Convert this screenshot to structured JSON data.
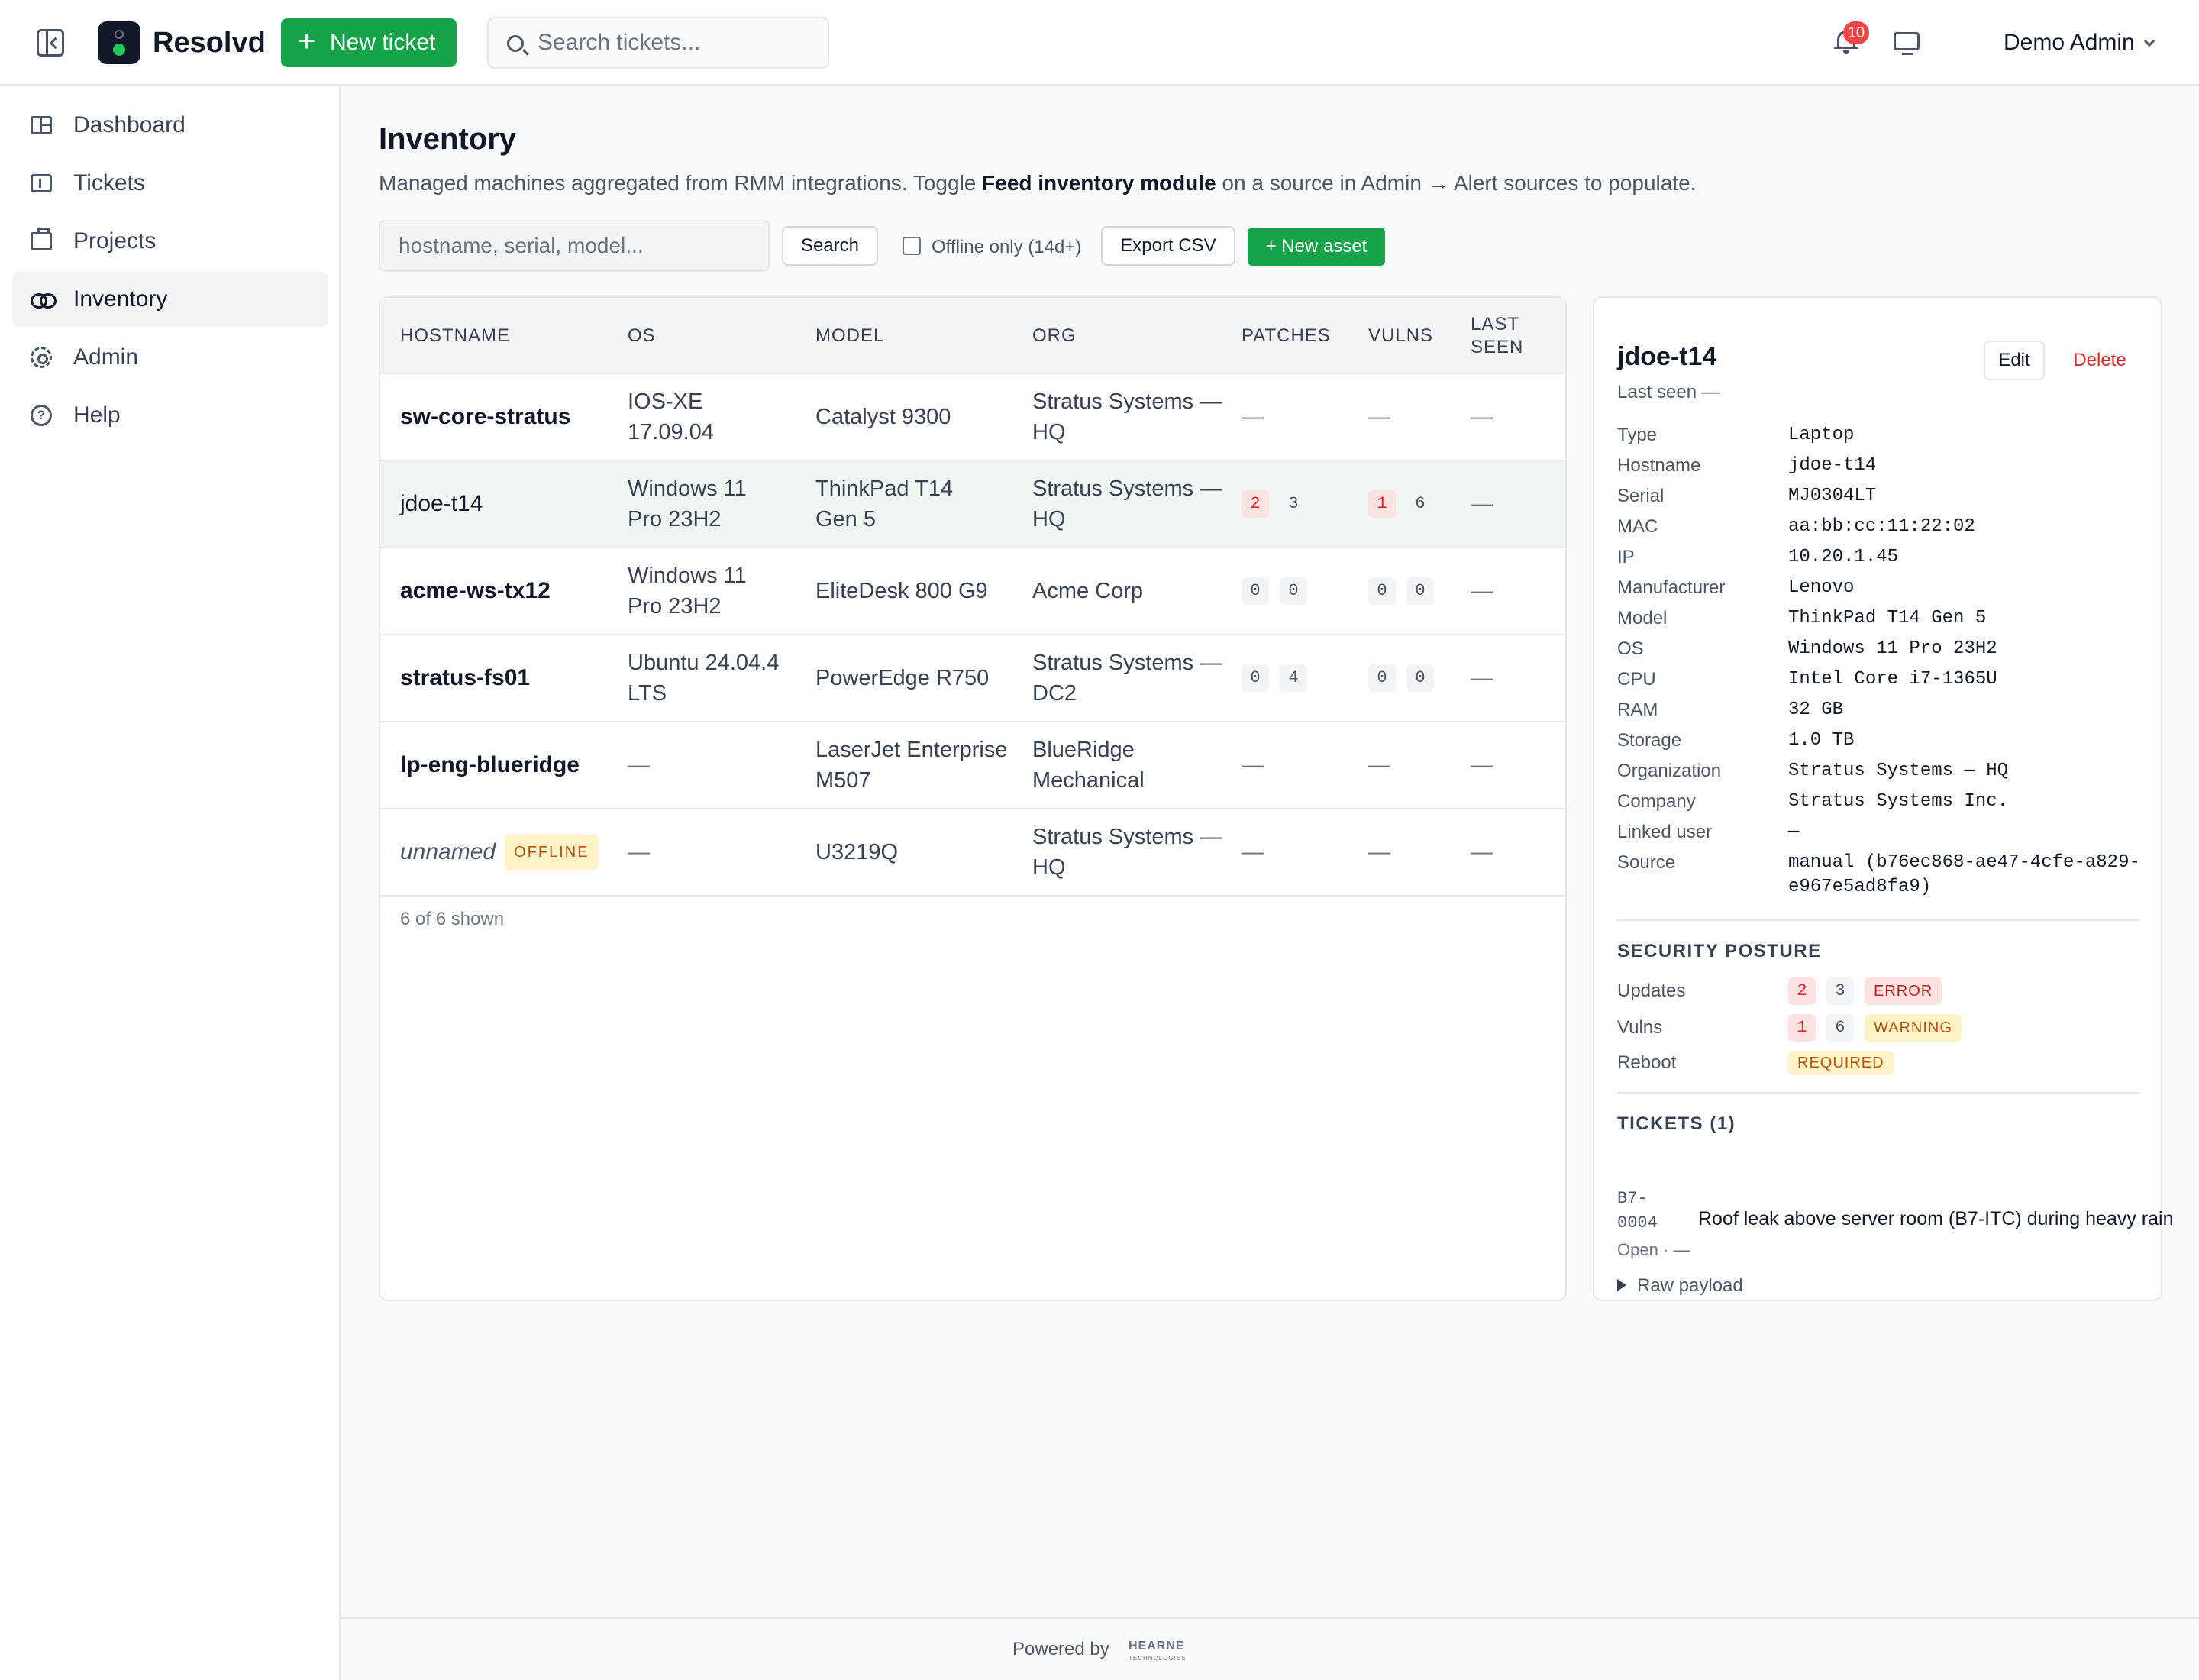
{
  "topbar": {
    "brand": "Resolvd",
    "new_ticket_label": "New ticket",
    "search_placeholder": "Search tickets...",
    "notification_count": "10",
    "user_name": "Demo Admin"
  },
  "sidebar": {
    "items": [
      {
        "label": "Dashboard",
        "icon": "dashboard-icon"
      },
      {
        "label": "Tickets",
        "icon": "ticket-icon"
      },
      {
        "label": "Projects",
        "icon": "projects-icon"
      },
      {
        "label": "Inventory",
        "icon": "inventory-icon",
        "active": true
      },
      {
        "label": "Admin",
        "icon": "gear-icon"
      },
      {
        "label": "Help",
        "icon": "help-icon"
      }
    ]
  },
  "page": {
    "title": "Inventory",
    "subtitle_pre": "Managed machines aggregated from RMM integrations. Toggle ",
    "subtitle_bold": "Feed inventory module",
    "subtitle_post": " on a source in Admin → Alert sources to populate."
  },
  "filters": {
    "search_placeholder": "hostname, serial, model...",
    "search_button": "Search",
    "offline_label": "Offline only (14d+)",
    "export_button": "Export CSV",
    "new_asset_button": "+ New asset"
  },
  "table": {
    "columns": [
      "HOSTNAME",
      "OS",
      "MODEL",
      "ORG",
      "PATCHES",
      "VULNS",
      "LAST SEEN"
    ],
    "rows": [
      {
        "hostname": "sw-core-stratus",
        "os": "IOS-XE 17.09.04",
        "model": "Catalyst 9300",
        "org": "Stratus Systems — HQ",
        "patches": [
          "—"
        ],
        "vulns": [
          "—"
        ],
        "last_seen": "—"
      },
      {
        "hostname": "jdoe-t14",
        "os": "Windows 11 Pro 23H2",
        "model": "ThinkPad T14 Gen 5",
        "org": "Stratus Systems — HQ",
        "patches": [
          "2",
          "3"
        ],
        "vulns": [
          "1",
          "6"
        ],
        "last_seen": "—"
      },
      {
        "hostname": "acme-ws-tx12",
        "os": "Windows 11 Pro 23H2",
        "model": "EliteDesk 800 G9",
        "org": "Acme Corp",
        "patches": [
          "0",
          "0"
        ],
        "vulns": [
          "0",
          "0"
        ],
        "last_seen": "—"
      },
      {
        "hostname": "stratus-fs01",
        "os": "Ubuntu 24.04.4 LTS",
        "model": "PowerEdge R750",
        "org": "Stratus Systems — DC2",
        "patches": [
          "0",
          "4"
        ],
        "vulns": [
          "0",
          "0"
        ],
        "last_seen": "—"
      },
      {
        "hostname": "lp-eng-blueridge",
        "os": "—",
        "model": "LaserJet Enterprise M507",
        "org": "BlueRidge Mechanical",
        "patches": [
          "—"
        ],
        "vulns": [
          "—"
        ],
        "last_seen": "—"
      },
      {
        "hostname": "unnamed",
        "offline_tag": "OFFLINE",
        "os": "—",
        "model": "U3219Q",
        "org": "Stratus Systems — HQ",
        "patches": [
          "—"
        ],
        "vulns": [
          "—"
        ],
        "last_seen": "—"
      }
    ],
    "shown_count": "6 of 6 shown"
  },
  "detail": {
    "title": "jdoe-t14",
    "last_seen": "Last seen —",
    "edit_button": "Edit",
    "delete_button": "Delete",
    "fields": [
      {
        "label": "Type",
        "value": "Laptop"
      },
      {
        "label": "Hostname",
        "value": "jdoe-t14"
      },
      {
        "label": "Serial",
        "value": "MJ0304LT"
      },
      {
        "label": "MAC",
        "value": "aa:bb:cc:11:22:02"
      },
      {
        "label": "IP",
        "value": "10.20.1.45"
      },
      {
        "label": "Manufacturer",
        "value": "Lenovo"
      },
      {
        "label": "Model",
        "value": "ThinkPad T14 Gen 5"
      },
      {
        "label": "OS",
        "value": "Windows 11 Pro 23H2"
      },
      {
        "label": "CPU",
        "value": "Intel Core i7-1365U"
      },
      {
        "label": "RAM",
        "value": "32 GB"
      },
      {
        "label": "Storage",
        "value": "1.0 TB"
      },
      {
        "label": "Organization",
        "value": "Stratus Systems — HQ"
      },
      {
        "label": "Company",
        "value": "Stratus Systems Inc."
      },
      {
        "label": "Linked user",
        "value": "—"
      },
      {
        "label": "Source",
        "value": "manual (b76ec868-ae47-4cfe-a829-e967e5ad8fa9)"
      }
    ],
    "security": {
      "title": "SECURITY POSTURE",
      "updates_label": "Updates",
      "updates": [
        "2",
        "3"
      ],
      "updates_status": "ERROR",
      "vulns_label": "Vulns",
      "vulns": [
        "1",
        "6"
      ],
      "vulns_status": "WARNING",
      "reboot_label": "Reboot",
      "reboot_status": "REQUIRED"
    },
    "tickets": {
      "title": "TICKETS (1)",
      "items": [
        {
          "id": "B7-0004",
          "title": "Roof leak above server room (B7-ITC) during heavy rain",
          "status": "Open · —"
        }
      ]
    },
    "raw_payload_label": "Raw payload"
  },
  "footer": {
    "powered_by": "Powered by",
    "logo_text": "HEARNE",
    "logo_sub": "TECHNOLOGIES"
  },
  "colors": {
    "accent": "#16a34a",
    "danger": "#dc2626",
    "warning": "#b45309"
  }
}
